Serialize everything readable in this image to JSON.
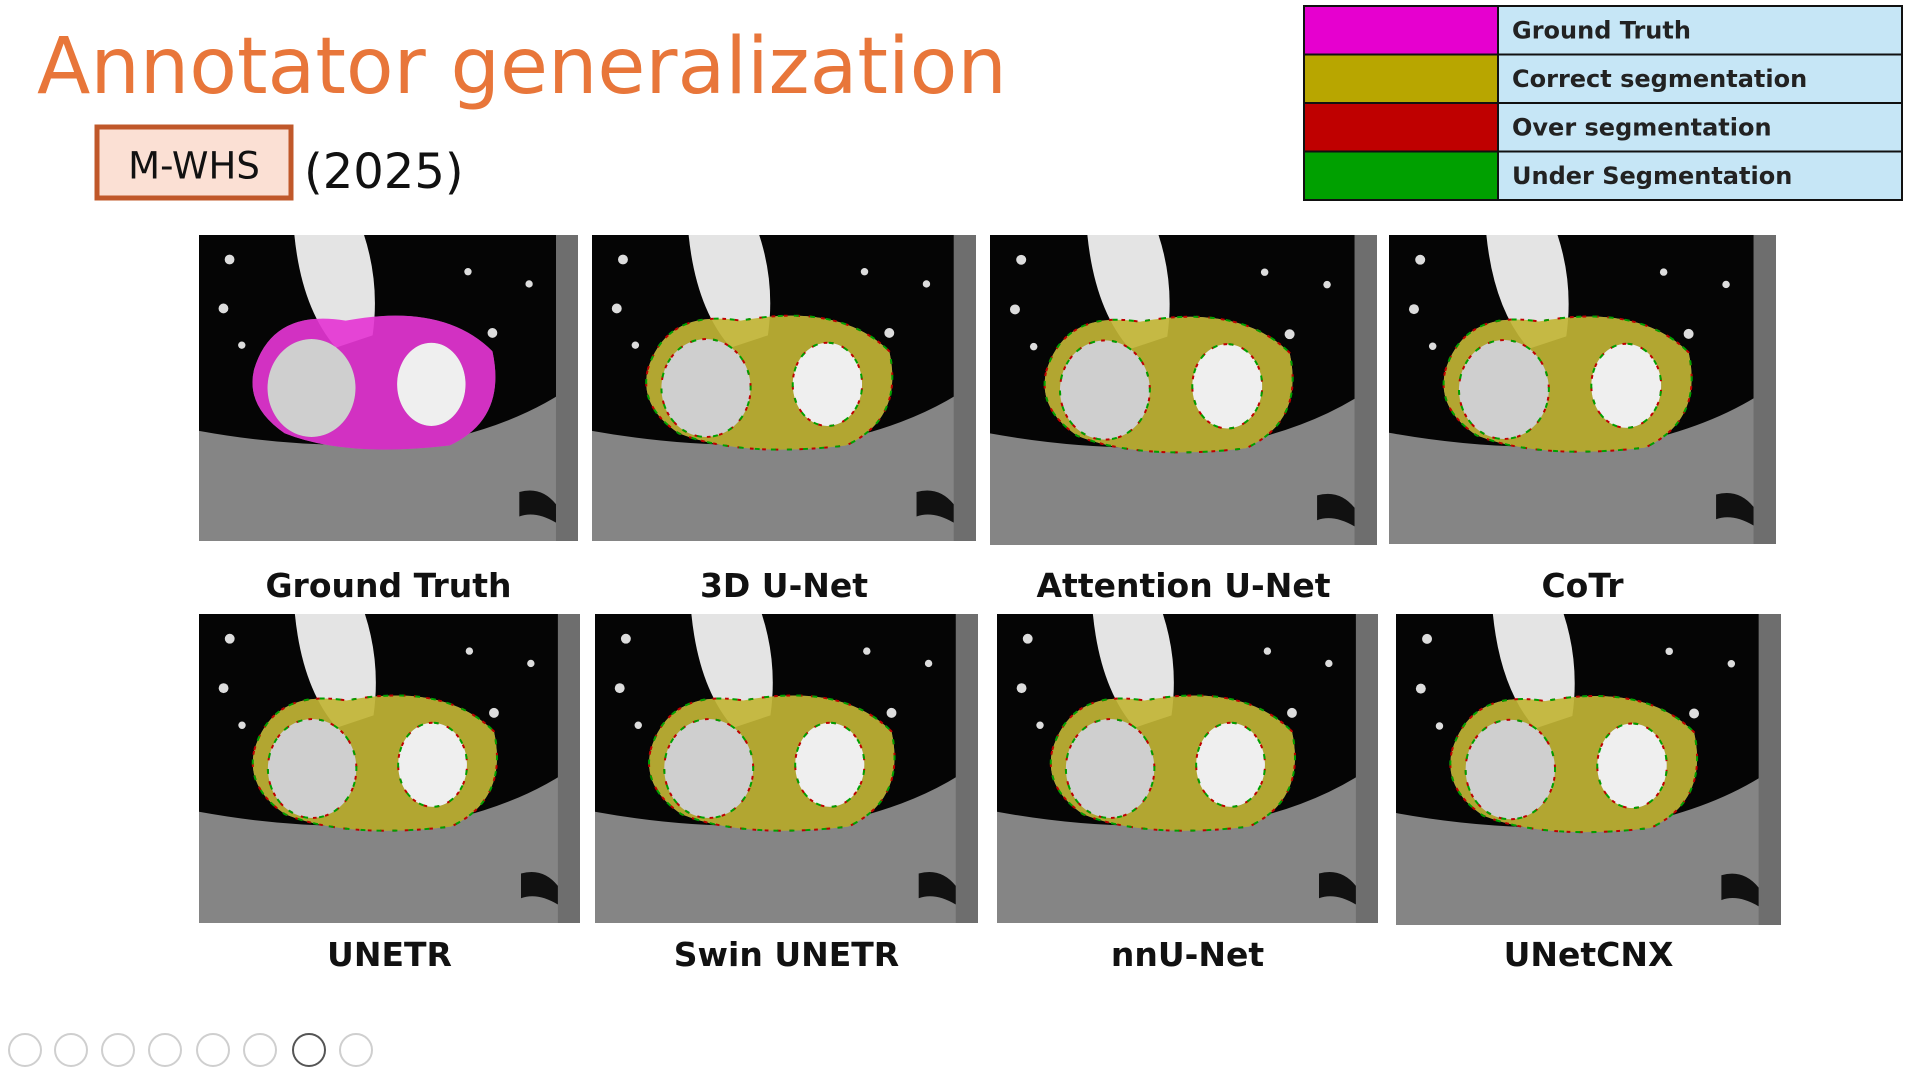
{
  "title": "Annotator generalization",
  "badge": "M-WHS",
  "year": "(2025)",
  "legend": [
    {
      "color": "#e600cf",
      "label": "Ground Truth"
    },
    {
      "color": "#b8a600",
      "label": "Correct segmentation"
    },
    {
      "color": "#bf0000",
      "label": "Over segmentation"
    },
    {
      "color": "#00a000",
      "label": "Under Segmentation"
    }
  ],
  "panels": [
    "Ground Truth",
    "3D U-Net",
    "Attention U-Net",
    "CoTr",
    "UNETR",
    "Swin UNETR",
    "nnU-Net",
    "UNetCNX"
  ]
}
